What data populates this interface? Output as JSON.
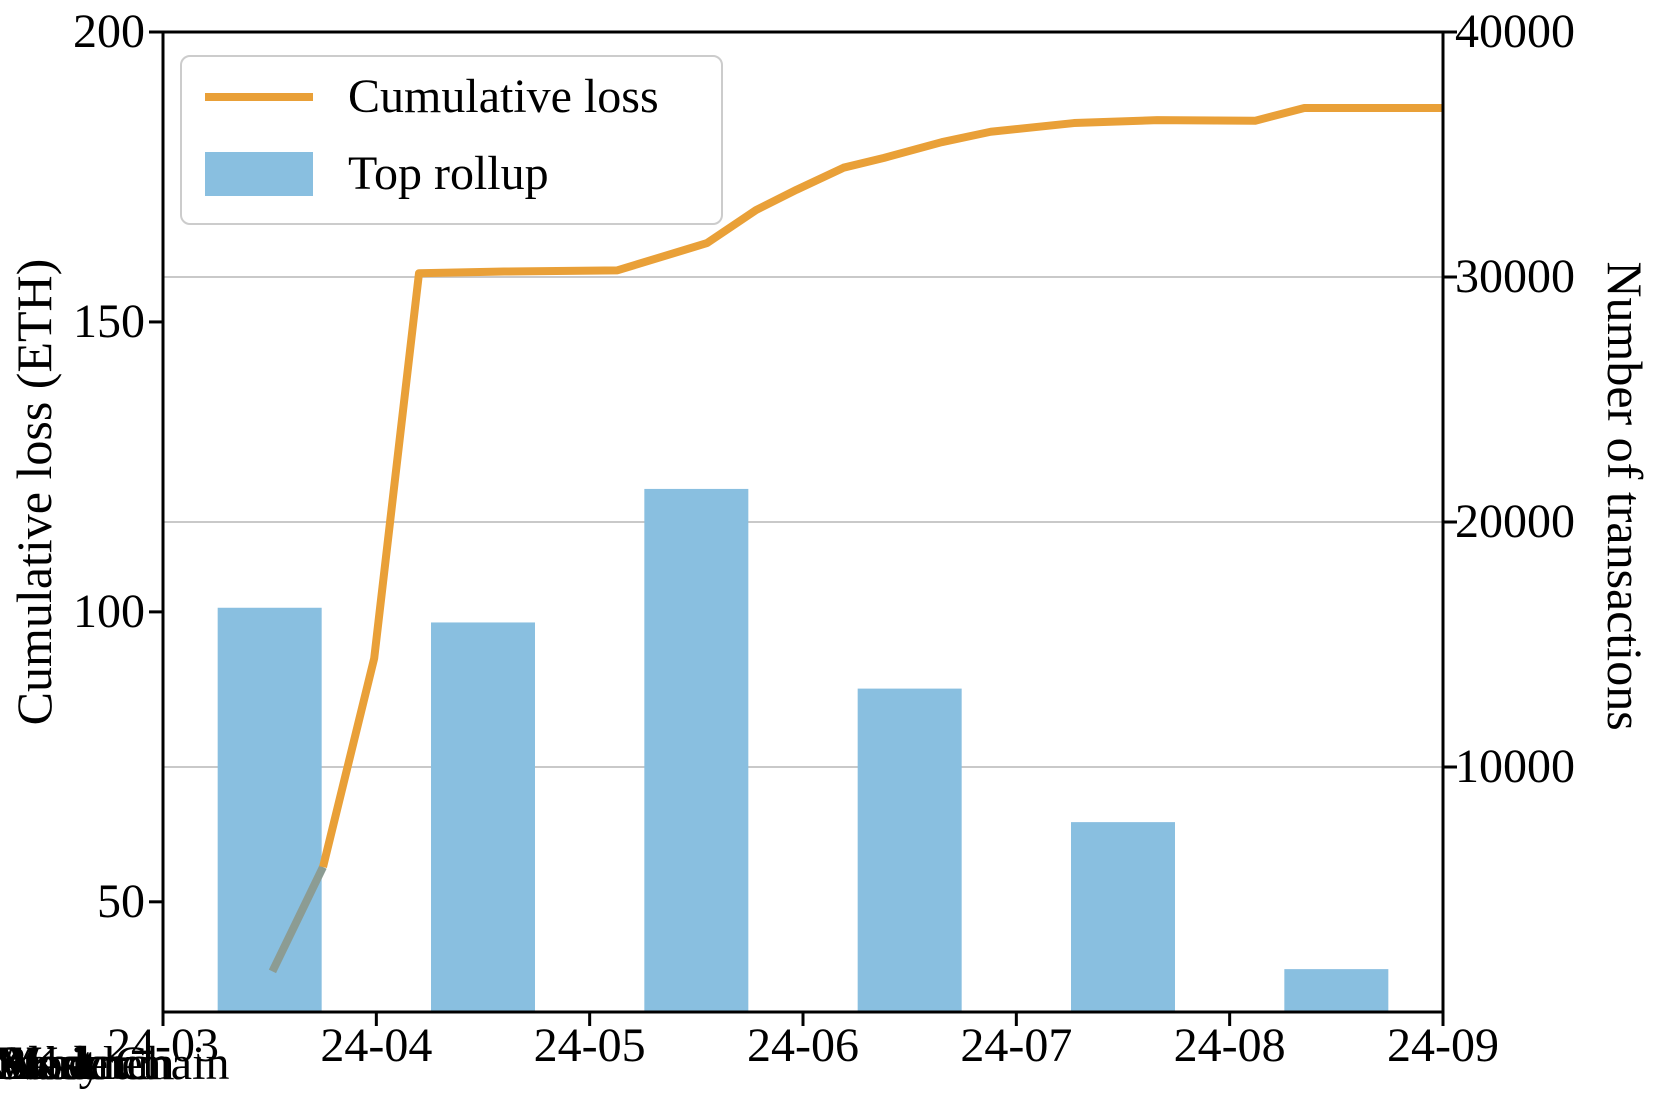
{
  "legend": {
    "items": [
      {
        "label": "Cumulative loss",
        "swatch": "line"
      },
      {
        "label": "Top rollup",
        "swatch": "bar"
      }
    ]
  },
  "overlapping_labels": [
    "Starknet",
    "Arbitrum",
    "Base",
    "Blast",
    "Mode",
    "ZKsync",
    "WorldChain"
  ],
  "chart_data": {
    "type": "composite",
    "grid": "on",
    "legend_position": "upper left",
    "x_axis": {
      "tick_labels": [
        "24-03",
        "24-04",
        "24-05",
        "24-06",
        "24-07",
        "24-08",
        "24-09"
      ]
    },
    "left_axis": {
      "label": "Cumulative loss (ETH)",
      "tick_values": [
        50,
        100,
        150,
        200
      ],
      "range": [
        31,
        200
      ]
    },
    "right_axis": {
      "label": "Number of transactions",
      "tick_values": [
        10000,
        20000,
        30000,
        40000
      ],
      "range": [
        0,
        40000
      ]
    },
    "gridlines": {
      "axis": "right",
      "values": [
        10000,
        20000,
        30000
      ],
      "color": "#c9c9c9"
    },
    "bar_series": {
      "name": "Top rollup",
      "type": "bar",
      "axis": "right",
      "color": "#89BFE0",
      "categories": [
        "24-03",
        "24-04",
        "24-05",
        "24-06",
        "24-07",
        "24-08"
      ],
      "values": [
        16500,
        15900,
        21350,
        13200,
        7750,
        1750
      ]
    },
    "line_series": {
      "name": "Cumulative loss",
      "type": "line",
      "axis": "left",
      "color": "#E9A038",
      "x_unit": "months after 24-03",
      "points": [
        [
          0.75,
          56
        ],
        [
          0.99,
          92
        ],
        [
          1.2,
          158.4
        ],
        [
          1.6,
          158.7
        ],
        [
          2.13,
          158.9
        ],
        [
          2.55,
          163.6
        ],
        [
          2.78,
          169.3
        ],
        [
          2.97,
          172.8
        ],
        [
          3.19,
          176.6
        ],
        [
          3.38,
          178.3
        ],
        [
          3.65,
          181.0
        ],
        [
          3.88,
          182.8
        ],
        [
          4.27,
          184.3
        ],
        [
          4.66,
          184.8
        ],
        [
          5.12,
          184.7
        ],
        [
          5.35,
          186.9
        ],
        [
          6.0,
          186.9
        ]
      ]
    },
    "gray_segment": {
      "name": "line lead-in segment",
      "type": "line",
      "axis": "left",
      "color": "#8C9C93",
      "points": [
        [
          0.513,
          38
        ],
        [
          0.75,
          56
        ]
      ]
    }
  }
}
